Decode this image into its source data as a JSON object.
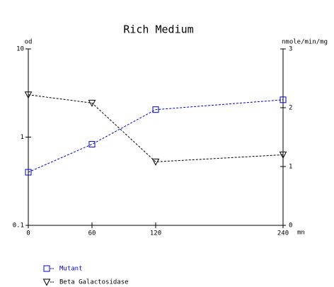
{
  "chart_data": {
    "type": "line",
    "title": "Rich Medium",
    "ylabel": "od",
    "y2label": "nmole/min/mg",
    "xlabel": "mn",
    "x": [
      0,
      60,
      120,
      240
    ],
    "xlim": [
      0,
      240
    ],
    "xticks": [
      0,
      60,
      120,
      240
    ],
    "ylim": [
      0.1,
      10
    ],
    "yticks": [
      0.1,
      1,
      10
    ],
    "ylog": true,
    "y2lim": [
      0,
      3
    ],
    "y2ticks": [
      0,
      1,
      2,
      3
    ],
    "series": [
      {
        "name": "Mutant",
        "color": "#0000cc",
        "marker": "square",
        "values": [
          0.4,
          0.83,
          2.05,
          2.65
        ]
      },
      {
        "name": "Beta Galactosidase",
        "color": "#000000",
        "marker": "triangle",
        "axis": "y2",
        "values": [
          2.22,
          2.08,
          1.08,
          1.2
        ]
      }
    ]
  }
}
